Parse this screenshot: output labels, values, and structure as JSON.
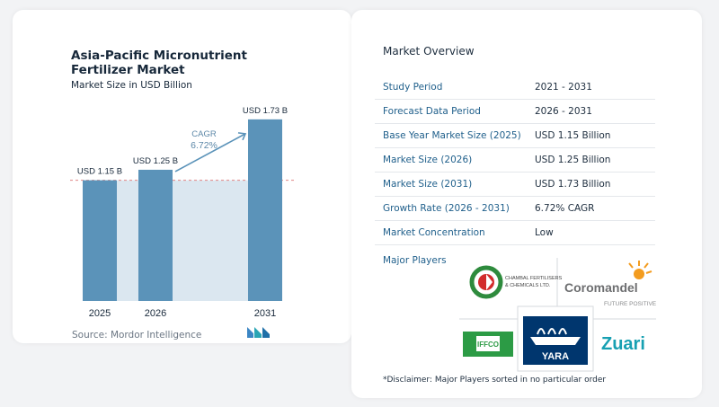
{
  "left": {
    "title": "Asia-Pacific Micronutrient Fertilizer Market",
    "subtitle": "Market Size in USD Billion",
    "source": "Source: Mordor Intelligence"
  },
  "chart_data": {
    "type": "bar",
    "categories": [
      "2025",
      "2026",
      "2031"
    ],
    "values": [
      1.15,
      1.25,
      1.73
    ],
    "value_labels": [
      "USD 1.15 B",
      "USD 1.25 B",
      "USD 1.73 B"
    ],
    "title": "Asia-Pacific Micronutrient Fertilizer Market",
    "subtitle": "Market Size in USD Billion",
    "cagr_label": "CAGR",
    "cagr_value": "6.72%",
    "ylim": [
      0,
      1.9
    ],
    "colors": {
      "bar": "#5b93b9",
      "shade": "#dbe7f0",
      "arrow": "#5b93b9",
      "cagr_text": "#5d88a8"
    }
  },
  "overview": {
    "title": "Market Overview",
    "rows": [
      {
        "label": "Study Period",
        "value": "2021 - 2031"
      },
      {
        "label": "Forecast Data Period",
        "value": "2026 - 2031"
      },
      {
        "label": "Base Year Market Size (2025)",
        "value": "USD 1.15 Billion"
      },
      {
        "label": "Market Size (2026)",
        "value": "USD 1.25 Billion"
      },
      {
        "label": "Market Size (2031)",
        "value": "USD 1.73 Billion"
      },
      {
        "label": "Growth Rate (2026 - 2031)",
        "value": "6.72% CAGR"
      },
      {
        "label": "Market Concentration",
        "value": "Low"
      }
    ],
    "major_players_label": "Major Players",
    "disclaimer": "*Disclaimer: Major Players sorted in no particular order"
  },
  "players": {
    "chambal": "CHAMBAL FERTILISERS & CHEMICALS LTD.",
    "coromandel": "Coromandel",
    "coromandel_tagline": "FUTURE POSITIVE",
    "iffco": "IFFCO",
    "yara": "YARA",
    "zuari": "Zuari"
  }
}
